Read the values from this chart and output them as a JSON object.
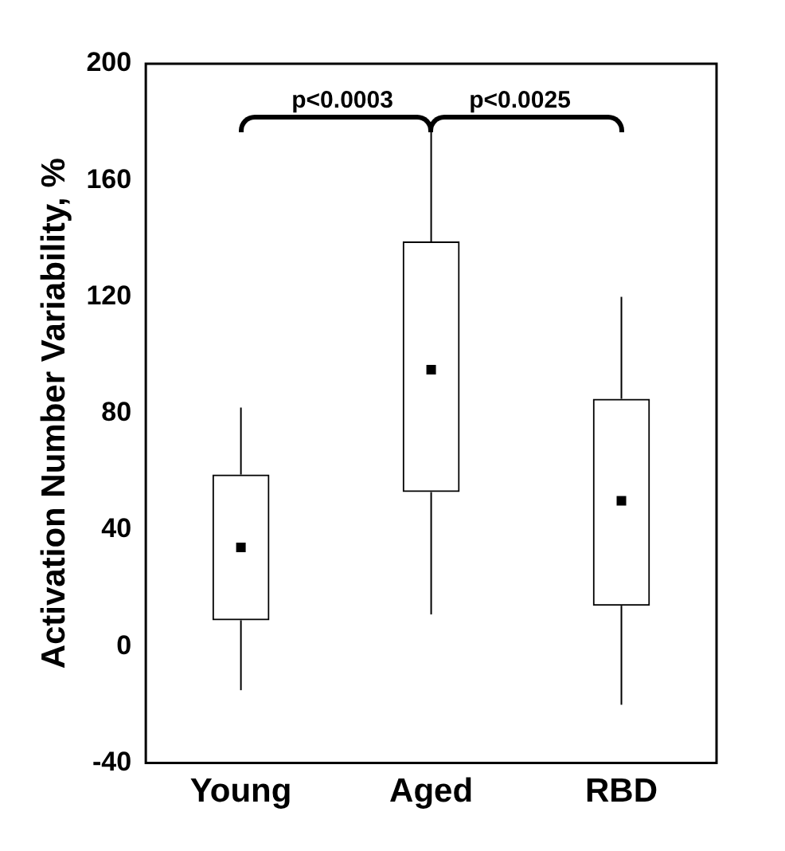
{
  "chart_data": {
    "type": "box",
    "ylabel": "Activation Number Variability, %",
    "categories": [
      "Young",
      "Aged",
      "RBD"
    ],
    "boxes": [
      {
        "low": -15,
        "q1": 9,
        "median": 34,
        "q3": 59,
        "high": 82
      },
      {
        "low": 11,
        "q1": 53,
        "median": 95,
        "q3": 139,
        "high": 180
      },
      {
        "low": -20,
        "q1": 14,
        "median": 50,
        "q3": 85,
        "high": 120
      }
    ],
    "ylim": [
      -40,
      200
    ],
    "yticks": [
      -40,
      0,
      40,
      80,
      120,
      160,
      200
    ],
    "grid": false,
    "annotations": [
      {
        "text": "p<0.0003"
      },
      {
        "text": "p<0.0025"
      }
    ]
  }
}
